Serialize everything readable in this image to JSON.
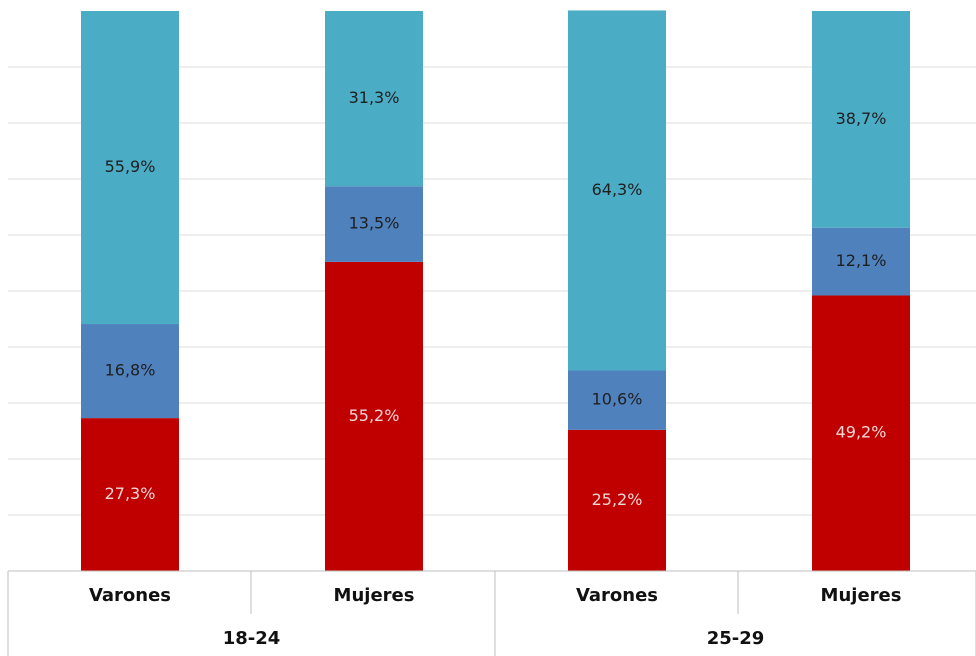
{
  "chart_data": {
    "type": "bar",
    "stacked": true,
    "groups": [
      "18-24",
      "25-29"
    ],
    "categories": [
      "Varones",
      "Mujeres",
      "Varones",
      "Mujeres"
    ],
    "category_groups": [
      0,
      0,
      1,
      1
    ],
    "series": [
      {
        "values": [
          27.3,
          55.2,
          25.2,
          49.2
        ],
        "labels": [
          "27,3%",
          "55,2%",
          "25,2%",
          "49,2%"
        ],
        "color": "#c00000",
        "label_color": "#f2d7d7"
      },
      {
        "values": [
          16.8,
          13.5,
          10.6,
          12.1
        ],
        "labels": [
          "16,8%",
          "13,5%",
          "10,6%",
          "12,1%"
        ],
        "color": "#4f81bd",
        "label_color": "#1f1f1f"
      },
      {
        "values": [
          55.9,
          31.3,
          64.3,
          38.7
        ],
        "labels": [
          "55,9%",
          "31,3%",
          "64,3%",
          "38,7%"
        ],
        "color": "#4bacc6",
        "label_color": "#1f1f1f"
      }
    ],
    "ylim": [
      0,
      100
    ],
    "grid": true,
    "gridline_color": "#dcdcdc",
    "title": "",
    "xlabel": "",
    "ylabel": ""
  }
}
